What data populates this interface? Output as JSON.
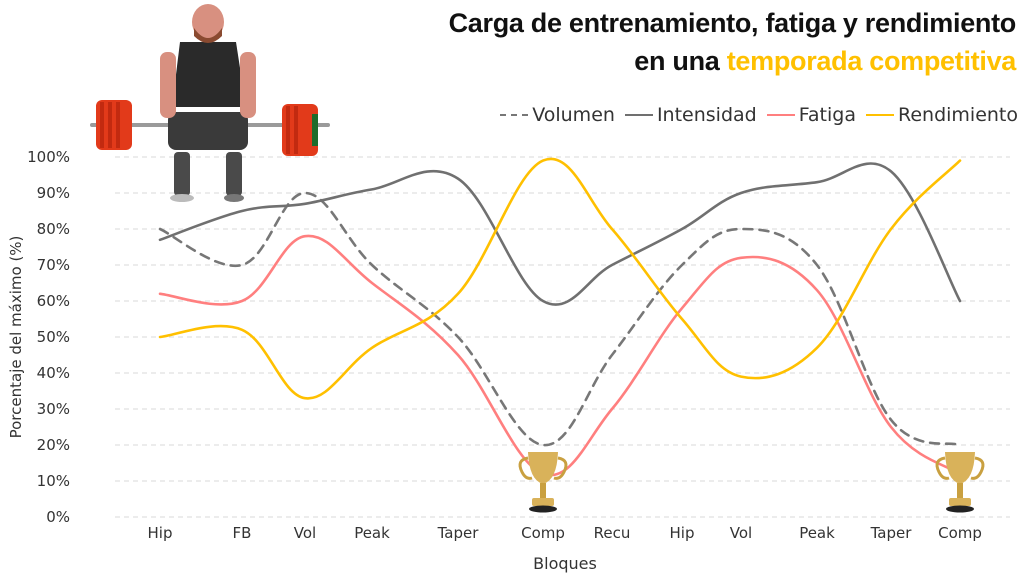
{
  "title": {
    "line1": "Carga de entrenamiento, fatiga y rendimiento",
    "line2_prefix": "en una ",
    "line2_accent": "temporada competitiva"
  },
  "colors": {
    "volumen": "#777777",
    "intensidad": "#707070",
    "fatiga": "#FF7F7F",
    "rendimiento": "#FFC000",
    "accent": "#FFC000",
    "grid": "#D9D9D9"
  },
  "legend": [
    {
      "label": "Volumen",
      "style": "dashed",
      "color": "#777777"
    },
    {
      "label": "Intensidad",
      "style": "solid",
      "color": "#707070"
    },
    {
      "label": "Fatiga",
      "style": "solid",
      "color": "#FF7F7F"
    },
    {
      "label": "Rendimiento",
      "style": "solid",
      "color": "#FFC000"
    }
  ],
  "icons": {
    "lifter": "deadlift-athlete-image",
    "trophy": "trophy-icon"
  },
  "chart_data": {
    "type": "line",
    "title": "Carga de entrenamiento, fatiga y rendimiento en una temporada competitiva",
    "xlabel": "Bloques",
    "ylabel": "Porcentaje del máximo (%)",
    "ylim": [
      0,
      100
    ],
    "yticks": [
      "0%",
      "10%",
      "20%",
      "30%",
      "40%",
      "50%",
      "60%",
      "70%",
      "80%",
      "90%",
      "100%"
    ],
    "grid": true,
    "legend_position": "top-right",
    "categories": [
      "Hip",
      "FB",
      "Vol",
      "Peak",
      "Taper",
      "Comp",
      "Recu",
      "Hip",
      "Vol",
      "Peak",
      "Taper",
      "Comp"
    ],
    "series": [
      {
        "name": "Volumen",
        "style": "dashed",
        "values": [
          80,
          70,
          90,
          70,
          50,
          20,
          45,
          70,
          80,
          70,
          27,
          20
        ]
      },
      {
        "name": "Intensidad",
        "style": "solid",
        "values": [
          77,
          85,
          87,
          91,
          94,
          60,
          70,
          80,
          90,
          93,
          96,
          60
        ]
      },
      {
        "name": "Fatiga",
        "style": "solid",
        "values": [
          62,
          60,
          78,
          65,
          45,
          12,
          30,
          58,
          72,
          63,
          25,
          12
        ]
      },
      {
        "name": "Rendimiento",
        "style": "solid",
        "values": [
          50,
          52,
          33,
          47,
          62,
          99,
          80,
          55,
          39,
          47,
          80,
          99
        ]
      }
    ],
    "annotations": [
      {
        "type": "trophy",
        "category_index": 5,
        "label": "Comp"
      },
      {
        "type": "trophy",
        "category_index": 11,
        "label": "Comp"
      }
    ]
  }
}
